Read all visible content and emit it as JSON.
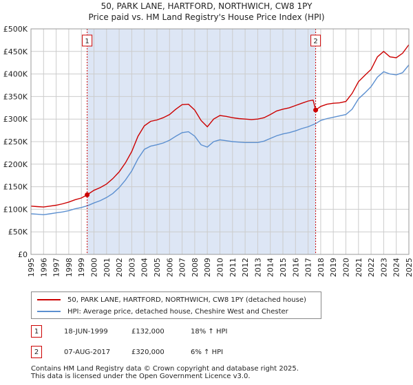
{
  "title_line1": "50, PARK LANE, HARTFORD, NORTHWICH, CW8 1PY",
  "title_line2": "Price paid vs. HM Land Registry's House Price Index (HPI)",
  "colors": {
    "property": "#cc0000",
    "hpi": "#5b8fd0",
    "shade": "#dde6f5",
    "grid": "#cccccc"
  },
  "chart_data": {
    "type": "line",
    "ylim": [
      0,
      500000
    ],
    "xlim": [
      1995,
      2025
    ],
    "y_ticks": [
      {
        "value": 0,
        "label": "£0"
      },
      {
        "value": 50000,
        "label": "£50K"
      },
      {
        "value": 100000,
        "label": "£100K"
      },
      {
        "value": 150000,
        "label": "£150K"
      },
      {
        "value": 200000,
        "label": "£200K"
      },
      {
        "value": 250000,
        "label": "£250K"
      },
      {
        "value": 300000,
        "label": "£300K"
      },
      {
        "value": 350000,
        "label": "£350K"
      },
      {
        "value": 400000,
        "label": "£400K"
      },
      {
        "value": 450000,
        "label": "£450K"
      },
      {
        "value": 500000,
        "label": "£500K"
      }
    ],
    "x_ticks": [
      "1995",
      "1996",
      "1997",
      "1998",
      "1999",
      "2000",
      "2001",
      "2002",
      "2003",
      "2004",
      "2005",
      "2006",
      "2007",
      "2008",
      "2009",
      "2010",
      "2011",
      "2012",
      "2013",
      "2014",
      "2015",
      "2016",
      "2017",
      "2018",
      "2019",
      "2020",
      "2021",
      "2022",
      "2023",
      "2024",
      "2025"
    ],
    "shaded_region": [
      1999.46,
      2017.6
    ],
    "series": [
      {
        "name": "50, PARK LANE, HARTFORD, NORTHWICH, CW8 1PY (detached house)",
        "x": [
          1995,
          1995.5,
          1996,
          1996.5,
          1997,
          1997.5,
          1998,
          1998.5,
          1999,
          1999.46,
          2000,
          2000.5,
          2001,
          2001.5,
          2002,
          2002.5,
          2003,
          2003.5,
          2004,
          2004.5,
          2005,
          2005.5,
          2006,
          2006.5,
          2007,
          2007.5,
          2008,
          2008.5,
          2009,
          2009.5,
          2010,
          2010.5,
          2011,
          2011.5,
          2012,
          2012.5,
          2013,
          2013.5,
          2014,
          2014.5,
          2015,
          2015.5,
          2016,
          2016.5,
          2017,
          2017.4,
          2017.6,
          2018,
          2018.5,
          2019,
          2019.5,
          2020,
          2020.5,
          2021,
          2021.5,
          2022,
          2022.5,
          2023,
          2023.5,
          2024,
          2024.5,
          2025
        ],
        "values": [
          107000,
          106000,
          105000,
          107000,
          109000,
          112000,
          116000,
          121000,
          125000,
          132000,
          142000,
          148000,
          156000,
          168000,
          183000,
          203000,
          228000,
          262000,
          285000,
          295000,
          298000,
          303000,
          310000,
          322000,
          332000,
          333000,
          320000,
          297000,
          283000,
          300000,
          308000,
          306000,
          303000,
          301000,
          300000,
          299000,
          300000,
          303000,
          310000,
          318000,
          322000,
          325000,
          330000,
          335000,
          340000,
          342000,
          320000,
          328000,
          333000,
          335000,
          336000,
          339000,
          357000,
          383000,
          397000,
          410000,
          438000,
          450000,
          438000,
          436000,
          446000,
          465000
        ]
      },
      {
        "name": "HPI: Average price, detached house, Cheshire West and Chester",
        "x": [
          1995,
          1995.5,
          1996,
          1996.5,
          1997,
          1997.5,
          1998,
          1998.5,
          1999,
          1999.5,
          2000,
          2000.5,
          2001,
          2001.5,
          2002,
          2002.5,
          2003,
          2003.5,
          2004,
          2004.5,
          2005,
          2005.5,
          2006,
          2006.5,
          2007,
          2007.5,
          2008,
          2008.5,
          2009,
          2009.5,
          2010,
          2010.5,
          2011,
          2011.5,
          2012,
          2012.5,
          2013,
          2013.5,
          2014,
          2014.5,
          2015,
          2015.5,
          2016,
          2016.5,
          2017,
          2017.6,
          2018,
          2018.5,
          2019,
          2019.5,
          2020,
          2020.5,
          2021,
          2021.5,
          2022,
          2022.5,
          2023,
          2023.5,
          2024,
          2024.5,
          2025
        ],
        "values": [
          90000,
          89000,
          88000,
          90000,
          92000,
          94000,
          97000,
          101000,
          104000,
          108000,
          114000,
          119000,
          126000,
          135000,
          148000,
          165000,
          185000,
          212000,
          233000,
          240000,
          243000,
          247000,
          253000,
          262000,
          270000,
          272000,
          262000,
          243000,
          238000,
          250000,
          254000,
          252000,
          250000,
          249000,
          248000,
          248000,
          248000,
          251000,
          257000,
          263000,
          267000,
          270000,
          274000,
          279000,
          283000,
          290000,
          297000,
          301000,
          304000,
          307000,
          310000,
          322000,
          345000,
          358000,
          372000,
          393000,
          405000,
          400000,
          398000,
          403000,
          420000
        ]
      }
    ],
    "annotations": [
      {
        "label": "1",
        "x": 1999.46,
        "y": 132000
      },
      {
        "label": "2",
        "x": 2017.6,
        "y": 320000
      }
    ]
  },
  "legend": {
    "property": "50, PARK LANE, HARTFORD, NORTHWICH, CW8 1PY (detached house)",
    "hpi": "HPI: Average price, detached house, Cheshire West and Chester"
  },
  "transactions": [
    {
      "num": "1",
      "date": "18-JUN-1999",
      "price": "£132,000",
      "hpi": "18% ↑ HPI"
    },
    {
      "num": "2",
      "date": "07-AUG-2017",
      "price": "£320,000",
      "hpi": "6% ↑ HPI"
    }
  ],
  "footer": {
    "line1": "Contains HM Land Registry data © Crown copyright and database right 2025.",
    "line2": "This data is licensed under the Open Government Licence v3.0."
  }
}
